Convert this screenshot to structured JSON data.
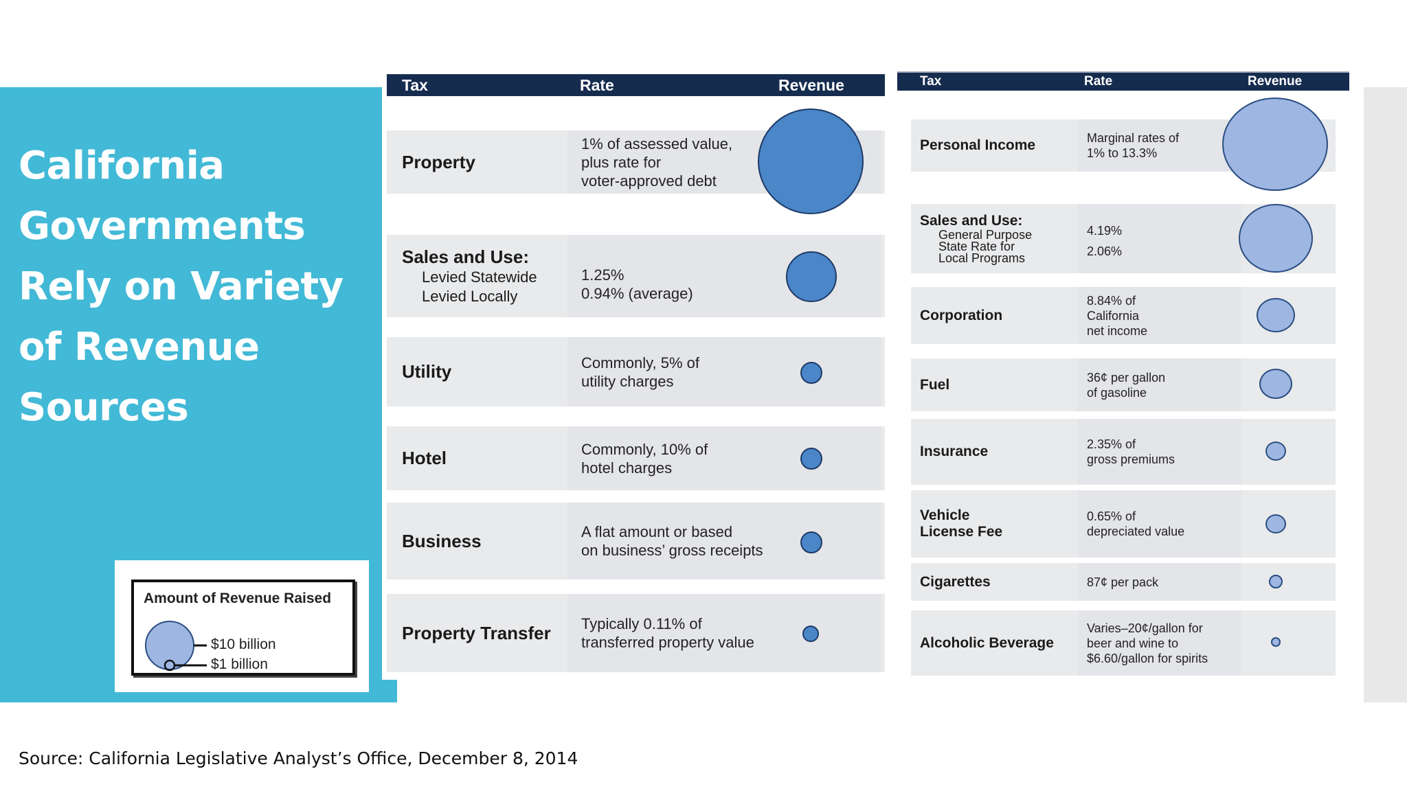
{
  "title": "California Governments Rely on Variety of Revenue Sources",
  "source": "Source: California Legislative Analyst’s Office, December 8, 2014",
  "legend": {
    "title": "Amount of Revenue Raised",
    "large_label": "$10 billion",
    "small_label": "$1 billion"
  },
  "headers": {
    "tax": "Tax",
    "rate": "Rate",
    "revenue": "Revenue"
  },
  "local_taxes": [
    {
      "tax": "Property",
      "rate": "1% of assessed value,\nplus rate for\nvoter-approved debt"
    },
    {
      "tax": "Sales and Use:",
      "sub": "Levied Statewide\nLevied Locally",
      "rate": "1.25%\n0.94% (average)"
    },
    {
      "tax": "Utility",
      "rate": "Commonly, 5% of\nutility charges"
    },
    {
      "tax": "Hotel",
      "rate": "Commonly, 10% of\nhotel charges"
    },
    {
      "tax": "Business",
      "rate": "A flat amount or based\non business’ gross receipts"
    },
    {
      "tax": "Property Transfer",
      "rate": "Typically 0.11% of\ntransferred property value"
    }
  ],
  "state_taxes": [
    {
      "tax": "Personal Income",
      "rate": "Marginal rates of\n1% to 13.3%"
    },
    {
      "tax": "Sales and Use:",
      "sub": "General Purpose\nState Rate for\nLocal Programs",
      "rate": "4.19%\n\n2.06%"
    },
    {
      "tax": "Corporation",
      "rate": "8.84% of\nCalifornia\nnet income"
    },
    {
      "tax": "Fuel",
      "rate": "36¢ per gallon\nof gasoline"
    },
    {
      "tax": "Insurance",
      "rate": "2.35% of\ngross premiums"
    },
    {
      "tax": "Vehicle\nLicense Fee",
      "rate": "0.65% of\ndepreciated value"
    },
    {
      "tax": "Cigarettes",
      "rate": "87¢ per pack"
    },
    {
      "tax": "Alcoholic Beverage",
      "rate": "Varies–20¢/gallon for\nbeer and wine to\n$6.60/gallon for spirits"
    }
  ],
  "colors": {
    "panel": "#42b9d6",
    "header": "#162c4f",
    "bubble_local": "#4a86c8",
    "bubble_state": "#9db6e2"
  }
}
